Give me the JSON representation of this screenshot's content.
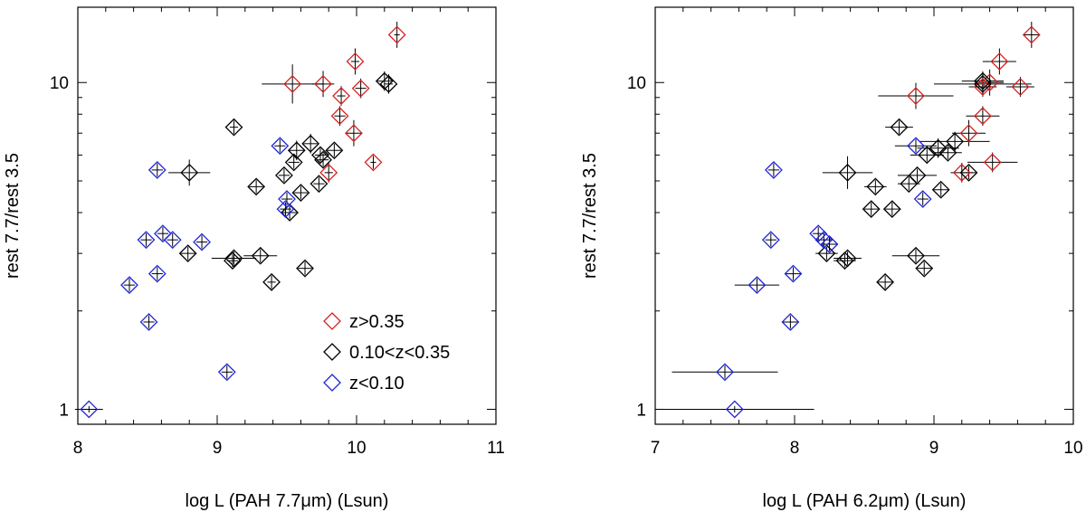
{
  "colors": {
    "high_z": "#d62020",
    "mid_z": "#000000",
    "low_z": "#1f24d8",
    "error": "#000000"
  },
  "chart_data": [
    {
      "type": "scatter",
      "title": "",
      "xlabel": "log L (PAH 7.7μm) (Lsun)",
      "ylabel": "rest 7.7/rest 3.5",
      "xlim": [
        8,
        11
      ],
      "ylim": [
        0.9,
        17
      ],
      "yscale": "log",
      "xticks": [
        {
          "v": 8,
          "label": "8"
        },
        {
          "v": 9,
          "label": "9"
        },
        {
          "v": 10,
          "label": "10"
        },
        {
          "v": 11,
          "label": "11"
        }
      ],
      "yticks": [
        {
          "v": 1,
          "label": "1"
        },
        {
          "v": 10,
          "label": "10"
        }
      ],
      "legend": {
        "position": "bottom-right",
        "entries": [
          {
            "label": "z>0.35",
            "color_key": "high_z"
          },
          {
            "label": "0.10<z<0.35",
            "color_key": "mid_z"
          },
          {
            "label": "z<0.10",
            "color_key": "low_z"
          }
        ]
      },
      "series": [
        {
          "name": "z>0.35",
          "color_key": "high_z",
          "points": [
            {
              "x": 10.29,
              "y": 14.0,
              "xerr": 0.02,
              "yerr": 0.04
            },
            {
              "x": 9.99,
              "y": 11.6,
              "xerr": 0.03,
              "yerr": 0.04
            },
            {
              "x": 9.54,
              "y": 9.9,
              "xerr": 0.22,
              "yerr": 0.06
            },
            {
              "x": 9.76,
              "y": 9.9,
              "xerr": 0.08,
              "yerr": 0.04
            },
            {
              "x": 9.89,
              "y": 9.1,
              "xerr": 0.03,
              "yerr": 0.03
            },
            {
              "x": 10.03,
              "y": 9.6,
              "xerr": 0.04,
              "yerr": 0.03
            },
            {
              "x": 9.88,
              "y": 7.9,
              "xerr": 0.04,
              "yerr": 0.03
            },
            {
              "x": 9.98,
              "y": 7.0,
              "xerr": 0.06,
              "yerr": 0.04
            },
            {
              "x": 10.12,
              "y": 5.7,
              "xerr": 0.02,
              "yerr": 0.02
            },
            {
              "x": 9.8,
              "y": 5.3,
              "xerr": 0.03,
              "yerr": 0.03
            }
          ]
        },
        {
          "name": "0.10<z<0.35",
          "color_key": "mid_z",
          "points": [
            {
              "x": 10.2,
              "y": 10.1,
              "xerr": 0.05,
              "yerr": 0.03
            },
            {
              "x": 10.23,
              "y": 9.9,
              "xerr": 0.03,
              "yerr": 0.03
            },
            {
              "x": 9.12,
              "y": 7.3,
              "xerr": 0.03,
              "yerr": 0.02
            },
            {
              "x": 9.67,
              "y": 6.5,
              "xerr": 0.05,
              "yerr": 0.03
            },
            {
              "x": 9.57,
              "y": 6.2,
              "xerr": 0.06,
              "yerr": 0.03
            },
            {
              "x": 9.74,
              "y": 6.0,
              "xerr": 0.04,
              "yerr": 0.02
            },
            {
              "x": 9.84,
              "y": 6.2,
              "xerr": 0.05,
              "yerr": 0.02
            },
            {
              "x": 9.76,
              "y": 5.8,
              "xerr": 0.04,
              "yerr": 0.02
            },
            {
              "x": 9.55,
              "y": 5.7,
              "xerr": 0.04,
              "yerr": 0.02
            },
            {
              "x": 8.8,
              "y": 5.3,
              "xerr": 0.15,
              "yerr": 0.04
            },
            {
              "x": 9.48,
              "y": 5.2,
              "xerr": 0.04,
              "yerr": 0.02
            },
            {
              "x": 9.28,
              "y": 4.8,
              "xerr": 0.05,
              "yerr": 0.02
            },
            {
              "x": 9.73,
              "y": 4.9,
              "xerr": 0.04,
              "yerr": 0.02
            },
            {
              "x": 9.6,
              "y": 4.6,
              "xerr": 0.05,
              "yerr": 0.02
            },
            {
              "x": 9.52,
              "y": 4.0,
              "xerr": 0.05,
              "yerr": 0.02
            },
            {
              "x": 8.79,
              "y": 3.0,
              "xerr": 0.06,
              "yerr": 0.02
            },
            {
              "x": 9.12,
              "y": 2.9,
              "xerr": 0.16,
              "yerr": 0.02
            },
            {
              "x": 9.11,
              "y": 2.85,
              "xerr": 0.04,
              "yerr": 0.02
            },
            {
              "x": 9.31,
              "y": 2.95,
              "xerr": 0.12,
              "yerr": 0.02
            },
            {
              "x": 9.63,
              "y": 2.7,
              "xerr": 0.05,
              "yerr": 0.02
            },
            {
              "x": 9.39,
              "y": 2.45,
              "xerr": 0.03,
              "yerr": 0.02
            }
          ]
        },
        {
          "name": "z<0.10",
          "color_key": "low_z",
          "points": [
            {
              "x": 9.45,
              "y": 6.4,
              "xerr": 0.04,
              "yerr": 0.02
            },
            {
              "x": 8.57,
              "y": 5.4,
              "xerr": 0.04,
              "yerr": 0.02
            },
            {
              "x": 9.5,
              "y": 4.4,
              "xerr": 0.04,
              "yerr": 0.02
            },
            {
              "x": 9.49,
              "y": 4.1,
              "xerr": 0.04,
              "yerr": 0.02
            },
            {
              "x": 8.61,
              "y": 3.45,
              "xerr": 0.04,
              "yerr": 0.02
            },
            {
              "x": 8.68,
              "y": 3.3,
              "xerr": 0.04,
              "yerr": 0.02
            },
            {
              "x": 8.49,
              "y": 3.3,
              "xerr": 0.04,
              "yerr": 0.02
            },
            {
              "x": 8.89,
              "y": 3.25,
              "xerr": 0.04,
              "yerr": 0.02
            },
            {
              "x": 8.57,
              "y": 2.6,
              "xerr": 0.04,
              "yerr": 0.02
            },
            {
              "x": 8.37,
              "y": 2.4,
              "xerr": 0.04,
              "yerr": 0.02
            },
            {
              "x": 8.51,
              "y": 1.85,
              "xerr": 0.04,
              "yerr": 0.02
            },
            {
              "x": 9.07,
              "y": 1.3,
              "xerr": 0.04,
              "yerr": 0.02
            },
            {
              "x": 8.08,
              "y": 1.0,
              "xerr": 0.1,
              "yerr": 0.01
            }
          ]
        }
      ]
    },
    {
      "type": "scatter",
      "title": "",
      "xlabel": "log L (PAH 6.2μm) (Lsun)",
      "ylabel": "rest 7.7/rest 3.5",
      "xlim": [
        7,
        10
      ],
      "ylim": [
        0.9,
        17
      ],
      "yscale": "log",
      "xticks": [
        {
          "v": 7,
          "label": "7"
        },
        {
          "v": 8,
          "label": "8"
        },
        {
          "v": 9,
          "label": "9"
        },
        {
          "v": 10,
          "label": "10"
        }
      ],
      "yticks": [
        {
          "v": 1,
          "label": "1"
        },
        {
          "v": 10,
          "label": "10"
        }
      ],
      "series": [
        {
          "name": "z>0.35",
          "color_key": "high_z",
          "points": [
            {
              "x": 9.7,
              "y": 14.0,
              "xerr": 0.06,
              "yerr": 0.04
            },
            {
              "x": 9.47,
              "y": 11.6,
              "xerr": 0.12,
              "yerr": 0.04
            },
            {
              "x": 8.87,
              "y": 9.1,
              "xerr": 0.27,
              "yerr": 0.04
            },
            {
              "x": 9.4,
              "y": 10.0,
              "xerr": 0.1,
              "yerr": 0.04
            },
            {
              "x": 9.35,
              "y": 9.7,
              "xerr": 0.1,
              "yerr": 0.03
            },
            {
              "x": 9.62,
              "y": 9.7,
              "xerr": 0.1,
              "yerr": 0.03
            },
            {
              "x": 9.35,
              "y": 7.9,
              "xerr": 0.12,
              "yerr": 0.03
            },
            {
              "x": 9.25,
              "y": 7.0,
              "xerr": 0.12,
              "yerr": 0.04
            },
            {
              "x": 9.2,
              "y": 5.3,
              "xerr": 0.08,
              "yerr": 0.03
            },
            {
              "x": 9.42,
              "y": 5.7,
              "xerr": 0.18,
              "yerr": 0.03
            }
          ]
        },
        {
          "name": "0.10<z<0.35",
          "color_key": "mid_z",
          "points": [
            {
              "x": 9.35,
              "y": 9.9,
              "xerr": 0.35,
              "yerr": 0.03
            },
            {
              "x": 9.35,
              "y": 10.1,
              "xerr": 0.15,
              "yerr": 0.03
            },
            {
              "x": 8.75,
              "y": 7.3,
              "xerr": 0.1,
              "yerr": 0.02
            },
            {
              "x": 9.15,
              "y": 6.6,
              "xerr": 0.25,
              "yerr": 0.03
            },
            {
              "x": 9.03,
              "y": 6.3,
              "xerr": 0.15,
              "yerr": 0.03
            },
            {
              "x": 8.95,
              "y": 6.0,
              "xerr": 0.12,
              "yerr": 0.02
            },
            {
              "x": 9.1,
              "y": 6.1,
              "xerr": 0.1,
              "yerr": 0.02
            },
            {
              "x": 8.38,
              "y": 5.3,
              "xerr": 0.18,
              "yerr": 0.05
            },
            {
              "x": 8.88,
              "y": 5.2,
              "xerr": 0.14,
              "yerr": 0.02
            },
            {
              "x": 8.58,
              "y": 4.8,
              "xerr": 0.08,
              "yerr": 0.02
            },
            {
              "x": 8.82,
              "y": 4.9,
              "xerr": 0.08,
              "yerr": 0.02
            },
            {
              "x": 9.05,
              "y": 4.7,
              "xerr": 0.06,
              "yerr": 0.02
            },
            {
              "x": 9.25,
              "y": 5.3,
              "xerr": 0.06,
              "yerr": 0.02
            },
            {
              "x": 8.55,
              "y": 4.1,
              "xerr": 0.05,
              "yerr": 0.02
            },
            {
              "x": 8.7,
              "y": 4.1,
              "xerr": 0.05,
              "yerr": 0.02
            },
            {
              "x": 8.23,
              "y": 3.0,
              "xerr": 0.08,
              "yerr": 0.02
            },
            {
              "x": 8.38,
              "y": 2.9,
              "xerr": 0.1,
              "yerr": 0.02
            },
            {
              "x": 8.36,
              "y": 2.85,
              "xerr": 0.08,
              "yerr": 0.02
            },
            {
              "x": 8.87,
              "y": 2.95,
              "xerr": 0.17,
              "yerr": 0.02
            },
            {
              "x": 8.93,
              "y": 2.7,
              "xerr": 0.06,
              "yerr": 0.02
            },
            {
              "x": 8.65,
              "y": 2.45,
              "xerr": 0.06,
              "yerr": 0.02
            }
          ]
        },
        {
          "name": "z<0.10",
          "color_key": "low_z",
          "points": [
            {
              "x": 8.87,
              "y": 6.4,
              "xerr": 0.15,
              "yerr": 0.02
            },
            {
              "x": 7.85,
              "y": 5.4,
              "xerr": 0.04,
              "yerr": 0.02
            },
            {
              "x": 8.92,
              "y": 4.4,
              "xerr": 0.04,
              "yerr": 0.02
            },
            {
              "x": 8.17,
              "y": 3.45,
              "xerr": 0.04,
              "yerr": 0.02
            },
            {
              "x": 8.21,
              "y": 3.3,
              "xerr": 0.06,
              "yerr": 0.02
            },
            {
              "x": 7.83,
              "y": 3.3,
              "xerr": 0.04,
              "yerr": 0.02
            },
            {
              "x": 8.25,
              "y": 3.2,
              "xerr": 0.06,
              "yerr": 0.02
            },
            {
              "x": 7.99,
              "y": 2.6,
              "xerr": 0.06,
              "yerr": 0.02
            },
            {
              "x": 7.73,
              "y": 2.4,
              "xerr": 0.16,
              "yerr": 0.02
            },
            {
              "x": 7.97,
              "y": 1.85,
              "xerr": 0.06,
              "yerr": 0.02
            },
            {
              "x": 7.5,
              "y": 1.3,
              "xerr": 0.38,
              "yerr": 0.02
            },
            {
              "x": 7.57,
              "y": 1.0,
              "xerr": 0.57,
              "yerr": 0.01
            }
          ]
        }
      ]
    }
  ]
}
